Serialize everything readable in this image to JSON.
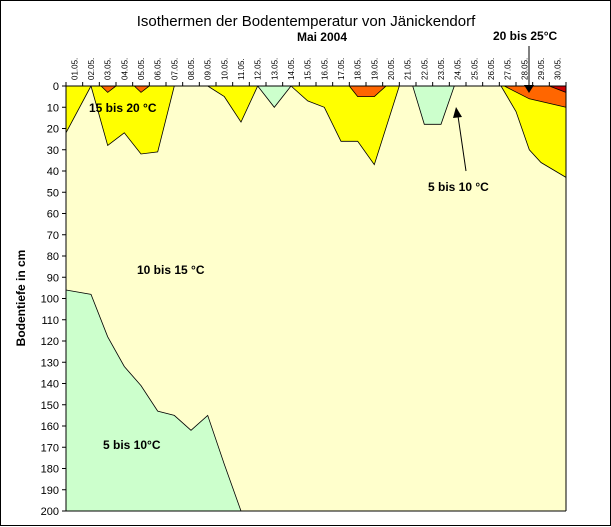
{
  "chart_data": {
    "type": "area",
    "title": "Isothermen der Bodentemperatur von Jänickendorf",
    "subtitle": "Mai 2004",
    "ylabel": "Bodentiefe in cm",
    "xlabel": "",
    "x_axis_position": "top",
    "y_inverted": true,
    "ylim": [
      0,
      200
    ],
    "y_ticks": [
      0,
      10,
      20,
      30,
      40,
      50,
      60,
      70,
      80,
      90,
      100,
      110,
      120,
      130,
      140,
      150,
      160,
      170,
      180,
      190,
      200
    ],
    "categories": [
      "01.05.",
      "02.05.",
      "03.05.",
      "04.05.",
      "05.05.",
      "06.05.",
      "07.05.",
      "08.05.",
      "09.05.",
      "10.05.",
      "11.05.",
      "12.05.",
      "13.05.",
      "14.05.",
      "15.05.",
      "16.05.",
      "17.05.",
      "18.05.",
      "19.05.",
      "20.05.",
      "21.05.",
      "22.05.",
      "23.05.",
      "24.05.",
      "25.05.",
      "26.05.",
      "27.05.",
      "28.05.",
      "29.05.",
      "30.05."
    ],
    "background_color": "#ffffcc",
    "series": [
      {
        "color": "#ffff00",
        "regions": [
          {
            "points": [
              [
                0,
                0
              ],
              [
                0,
                22
              ],
              [
                1,
                0
              ]
            ]
          },
          {
            "points": [
              [
                1,
                0
              ],
              [
                2,
                28
              ],
              [
                3,
                22
              ],
              [
                4,
                32
              ],
              [
                5,
                31
              ],
              [
                6,
                0
              ]
            ]
          },
          {
            "points": [
              [
                8,
                0
              ],
              [
                9,
                5
              ],
              [
                10,
                17
              ],
              [
                11,
                0
              ]
            ]
          },
          {
            "points": [
              [
                13,
                0
              ],
              [
                14,
                7
              ],
              [
                15,
                10
              ],
              [
                16,
                26
              ],
              [
                17,
                26
              ],
              [
                18,
                37
              ],
              [
                19.5,
                0
              ]
            ]
          },
          {
            "points": [
              [
                25.6,
                0
              ],
              [
                26.5,
                12
              ],
              [
                27.3,
                30
              ],
              [
                28,
                36
              ],
              [
                29,
                43
              ],
              [
                29,
                0
              ]
            ]
          }
        ]
      },
      {
        "color": "#ff6600",
        "regions": [
          {
            "points": [
              [
                1.6,
                0
              ],
              [
                2,
                3
              ],
              [
                2.5,
                0
              ]
            ]
          },
          {
            "points": [
              [
                3.6,
                0
              ],
              [
                4,
                3
              ],
              [
                4.5,
                0
              ]
            ]
          },
          {
            "points": [
              [
                16.5,
                0
              ],
              [
                17,
                5
              ],
              [
                18,
                5
              ],
              [
                18.7,
                0
              ]
            ]
          },
          {
            "points": [
              [
                25.8,
                0
              ],
              [
                27.3,
                6
              ],
              [
                29,
                10
              ],
              [
                29,
                0
              ]
            ]
          }
        ]
      },
      {
        "color": "#cc0000",
        "regions": [
          {
            "points": [
              [
                28.5,
                0
              ],
              [
                29,
                3
              ],
              [
                29,
                0
              ]
            ]
          }
        ]
      },
      {
        "color": "#ccffcc",
        "regions": [
          {
            "points": [
              [
                11,
                0
              ],
              [
                12,
                10
              ],
              [
                13,
                0
              ]
            ]
          },
          {
            "points": [
              [
                20.3,
                0
              ],
              [
                21,
                18
              ],
              [
                22,
                18
              ],
              [
                22.8,
                0
              ]
            ]
          },
          {
            "points": [
              [
                0,
                96
              ],
              [
                1,
                98
              ],
              [
                2,
                118
              ],
              [
                3,
                132
              ],
              [
                4,
                141
              ],
              [
                5,
                153
              ],
              [
                6,
                155
              ],
              [
                7,
                162
              ],
              [
                8,
                155
              ],
              [
                9,
                178
              ],
              [
                10,
                200
              ],
              [
                0,
                200
              ]
            ]
          }
        ]
      }
    ],
    "annotations": [
      {
        "text": "15 bis 20 °C"
      },
      {
        "text": "10 bis 15 °C"
      },
      {
        "text": "5 bis 10°C"
      },
      {
        "text": "5 bis 10 °C"
      },
      {
        "text": "20 bis 25°C"
      }
    ],
    "grid": false,
    "legend": "none"
  }
}
